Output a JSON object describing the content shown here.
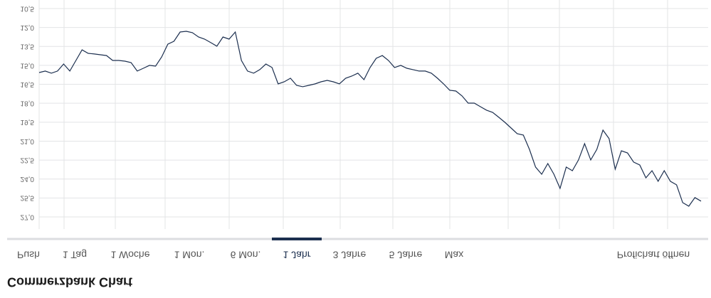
{
  "header": {
    "title": "Commerzbank Chart"
  },
  "tabs": {
    "items": [
      "Push",
      "1 Tag",
      "1 Woche",
      "1 Mon.",
      "6 Mon.",
      "1 Jahr",
      "3 Jahre",
      "5 Jahre",
      "Max"
    ],
    "active": 5,
    "link": "Profichart öffnen"
  },
  "chart_data": {
    "type": "line",
    "color": "#1c2f4f",
    "grid": true,
    "ylim": [
      10.5,
      27
    ],
    "yticks": [
      {
        "value": 10.5,
        "label": "10,5"
      },
      {
        "value": 12,
        "label": "12,0"
      },
      {
        "value": 13.5,
        "label": "13,5"
      },
      {
        "value": 15,
        "label": "15,0"
      },
      {
        "value": 16.5,
        "label": "16,5"
      },
      {
        "value": 18,
        "label": "18,0"
      },
      {
        "value": 19.5,
        "label": "19,5"
      },
      {
        "value": 21,
        "label": "21,0"
      },
      {
        "value": 22.5,
        "label": "22,5"
      },
      {
        "value": 24,
        "label": "24,0"
      },
      {
        "value": 25.5,
        "label": "25,5"
      },
      {
        "value": 27,
        "label": "27,0"
      }
    ],
    "values": [
      15.57,
      15.45,
      15.62,
      15.45,
      14.89,
      15.45,
      14.61,
      13.77,
      14.05,
      14.1,
      14.16,
      14.22,
      14.61,
      14.61,
      14.67,
      14.78,
      15.45,
      15.23,
      15.0,
      15.06,
      14.33,
      13.32,
      13.09,
      12.36,
      12.3,
      12.41,
      12.75,
      12.92,
      13.2,
      13.48,
      12.75,
      12.92,
      12.36,
      14.61,
      15.45,
      15.62,
      15.34,
      14.89,
      15.17,
      16.47,
      16.3,
      16.02,
      16.58,
      16.69,
      16.58,
      16.47,
      16.3,
      16.19,
      16.3,
      16.47,
      16.02,
      15.85,
      15.62,
      16.13,
      15.17,
      14.44,
      14.22,
      14.61,
      15.17,
      15.0,
      15.23,
      15.34,
      15.45,
      15.45,
      15.62,
      16.02,
      16.47,
      16.97,
      17.03,
      17.42,
      17.99,
      17.99,
      18.27,
      18.55,
      18.72,
      19.11,
      19.51,
      19.96,
      20.41,
      20.52,
      21.65,
      23.05,
      23.62,
      22.77,
      23.62,
      24.74,
      23.05,
      23.34,
      22.49,
      21.2,
      22.49,
      21.65,
      20.13,
      20.8,
      23.22,
      21.76,
      21.93,
      22.66,
      22.89,
      23.9,
      23.34,
      24.18,
      23.34,
      24.18,
      24.46,
      25.87,
      26.15,
      25.47,
      25.75
    ]
  }
}
